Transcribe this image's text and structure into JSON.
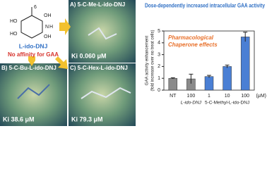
{
  "structure": {
    "labels": [
      "6",
      "HO",
      "OH",
      "HO",
      "OH",
      "N",
      "H"
    ],
    "name": "L-ido-DNJ",
    "note": "No affinity for GAA"
  },
  "panels": [
    {
      "title": "A) 5-C-Me-L-ido-DNJ",
      "ki": "Ki 0.060 μM"
    },
    {
      "title": "B) 5-C-Bu-L-ido-DNJ",
      "ki": "Ki 38.6 μM"
    },
    {
      "title": "C) 5-C-Hex-L-ido-DNJ",
      "ki": "Ki 79.3 μM"
    }
  ],
  "chart_data": {
    "type": "bar",
    "title": "Dose-dependently increased intracellular GAA activity",
    "annotation": [
      "Pharmacological",
      "Chaperone effects"
    ],
    "ylabel": [
      "GAA activity enhancement",
      "(fold increase over no treat cells)"
    ],
    "categories": [
      "NT",
      "100",
      "1",
      "10",
      "100"
    ],
    "values": [
      1.0,
      0.95,
      1.15,
      2.0,
      4.5
    ],
    "errors": [
      0.05,
      0.4,
      0.1,
      0.12,
      0.4
    ],
    "colors": [
      "#8a8a8a",
      "#8a8a8a",
      "#4a7fd4",
      "#4a7fd4",
      "#4a7fd4"
    ],
    "group_labels": [
      "L-ido-DNJ",
      "5-C-Methyl-L-ido-DNJ"
    ],
    "unit": "(μM)",
    "ylim": [
      0,
      5
    ],
    "yticks": [
      0,
      1,
      2,
      3,
      4,
      5
    ]
  }
}
